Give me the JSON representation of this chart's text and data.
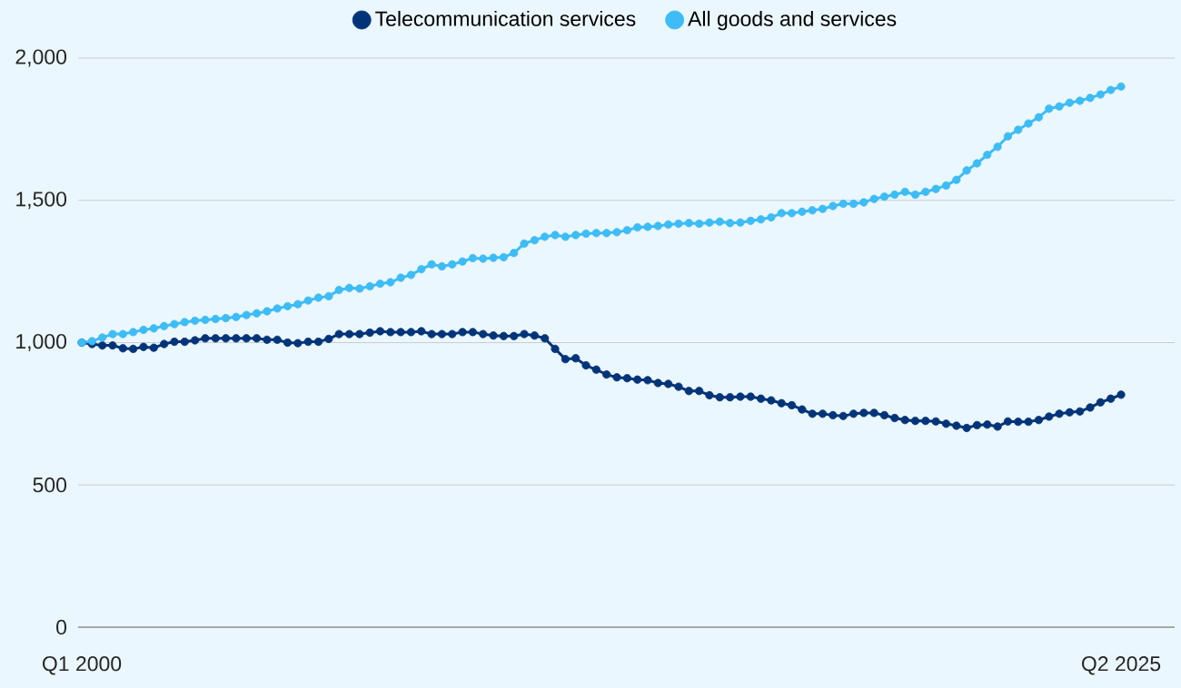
{
  "chart_data": {
    "type": "line",
    "categories": [
      "Q1 2000",
      null,
      null,
      null,
      null,
      null,
      null,
      null,
      null,
      null,
      null,
      null,
      null,
      null,
      null,
      null,
      null,
      null,
      null,
      null,
      null,
      null,
      null,
      null,
      null,
      null,
      null,
      null,
      null,
      null,
      null,
      null,
      null,
      null,
      null,
      null,
      null,
      null,
      null,
      null,
      null,
      null,
      null,
      null,
      null,
      null,
      null,
      null,
      null,
      null,
      null,
      null,
      null,
      null,
      null,
      null,
      null,
      null,
      null,
      null,
      null,
      null,
      null,
      null,
      null,
      null,
      null,
      null,
      null,
      null,
      null,
      null,
      null,
      null,
      null,
      null,
      null,
      null,
      null,
      null,
      null,
      null,
      null,
      null,
      null,
      null,
      null,
      null,
      null,
      null,
      null,
      null,
      null,
      null,
      null,
      null,
      null,
      null,
      null,
      null,
      null,
      "Q2 2025"
    ],
    "series": [
      {
        "name": "Telecommunication services",
        "color": "#003478",
        "values": [
          1000,
          995,
          990,
          990,
          980,
          978,
          985,
          982,
          995,
          1003,
          1003,
          1008,
          1015,
          1015,
          1015,
          1015,
          1015,
          1015,
          1010,
          1010,
          1000,
          998,
          1003,
          1003,
          1013,
          1030,
          1030,
          1030,
          1035,
          1040,
          1037,
          1037,
          1037,
          1040,
          1030,
          1030,
          1030,
          1037,
          1037,
          1030,
          1025,
          1023,
          1023,
          1030,
          1025,
          1015,
          978,
          942,
          945,
          920,
          905,
          888,
          878,
          875,
          870,
          868,
          858,
          855,
          845,
          830,
          830,
          815,
          808,
          808,
          810,
          810,
          803,
          797,
          787,
          780,
          765,
          750,
          750,
          745,
          742,
          750,
          753,
          753,
          745,
          735,
          728,
          725,
          725,
          723,
          715,
          708,
          700,
          710,
          712,
          705,
          723,
          722,
          722,
          728,
          740,
          750,
          755,
          758,
          772,
          790,
          803,
          817
        ]
      },
      {
        "name": "All goods and services",
        "color": "#3dbcf5",
        "values": [
          1000,
          1005,
          1018,
          1030,
          1030,
          1037,
          1045,
          1050,
          1058,
          1065,
          1072,
          1077,
          1080,
          1083,
          1086,
          1090,
          1097,
          1103,
          1110,
          1120,
          1128,
          1135,
          1148,
          1158,
          1163,
          1185,
          1192,
          1190,
          1198,
          1207,
          1212,
          1228,
          1238,
          1258,
          1275,
          1268,
          1275,
          1285,
          1297,
          1295,
          1298,
          1300,
          1315,
          1348,
          1360,
          1372,
          1378,
          1372,
          1378,
          1383,
          1385,
          1385,
          1388,
          1395,
          1405,
          1407,
          1410,
          1415,
          1418,
          1420,
          1418,
          1422,
          1425,
          1420,
          1422,
          1428,
          1433,
          1440,
          1455,
          1455,
          1460,
          1465,
          1470,
          1480,
          1488,
          1488,
          1493,
          1505,
          1513,
          1520,
          1530,
          1520,
          1530,
          1540,
          1552,
          1572,
          1605,
          1630,
          1660,
          1688,
          1725,
          1748,
          1770,
          1792,
          1822,
          1830,
          1843,
          1850,
          1860,
          1872,
          1888,
          1900
        ]
      }
    ],
    "ylim": [
      0,
      2000
    ],
    "yticks": [
      0,
      500,
      {
        "value": 1000,
        "label": "1,000"
      },
      {
        "value": 1500,
        "label": "1,500"
      },
      {
        "value": 2000,
        "label": "2,000"
      }
    ],
    "grid": "y",
    "legend": "top",
    "marker": "circle",
    "line_style": "solid"
  }
}
